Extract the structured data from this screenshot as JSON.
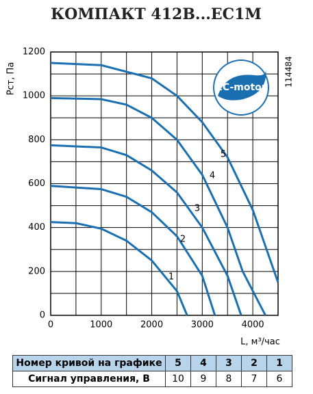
{
  "chart_data": {
    "type": "line",
    "title": "КОМПАКТ 412B...EC1M",
    "ylabel": "Pст, Па",
    "xlabel": "L, м³/час",
    "code": "114484",
    "logo": "EC-motor",
    "xlim": [
      0,
      4500
    ],
    "ylim": [
      0,
      1200
    ],
    "xticks": [
      0,
      1000,
      2000,
      3000,
      4000
    ],
    "yticks": [
      0,
      200,
      400,
      600,
      800,
      1000,
      1200
    ],
    "minor_xticks": [
      500,
      1500,
      2500,
      3500
    ],
    "minor_yticks": [
      100,
      300,
      500,
      700,
      900,
      1100
    ],
    "grid": true,
    "color": "#1a6fb0",
    "series": [
      {
        "name": "1",
        "x": [
          0,
          500,
          1000,
          1500,
          2000,
          2500,
          2700
        ],
        "values": [
          425,
          420,
          395,
          340,
          250,
          110,
          0
        ]
      },
      {
        "name": "2",
        "x": [
          0,
          1000,
          1500,
          2000,
          2500,
          3000,
          3250
        ],
        "values": [
          590,
          575,
          540,
          470,
          360,
          180,
          0
        ]
      },
      {
        "name": "3",
        "x": [
          0,
          1000,
          1500,
          2000,
          2500,
          3000,
          3500,
          3770
        ],
        "values": [
          775,
          765,
          730,
          660,
          560,
          400,
          180,
          0
        ]
      },
      {
        "name": "4",
        "x": [
          0,
          1000,
          1500,
          2000,
          2500,
          3000,
          3500,
          3800,
          4250
        ],
        "values": [
          990,
          985,
          960,
          900,
          800,
          640,
          400,
          200,
          0
        ]
      },
      {
        "name": "5",
        "x": [
          0,
          1000,
          2000,
          2500,
          3000,
          3500,
          4000,
          4500
        ],
        "values": [
          1150,
          1140,
          1080,
          1000,
          880,
          720,
          480,
          150
        ]
      }
    ]
  },
  "table": {
    "rows": [
      [
        "Номер кривой на графике",
        "5",
        "4",
        "3",
        "2",
        "1"
      ],
      [
        "Сигнал управления, В",
        "10",
        "9",
        "8",
        "7",
        "6"
      ]
    ]
  }
}
